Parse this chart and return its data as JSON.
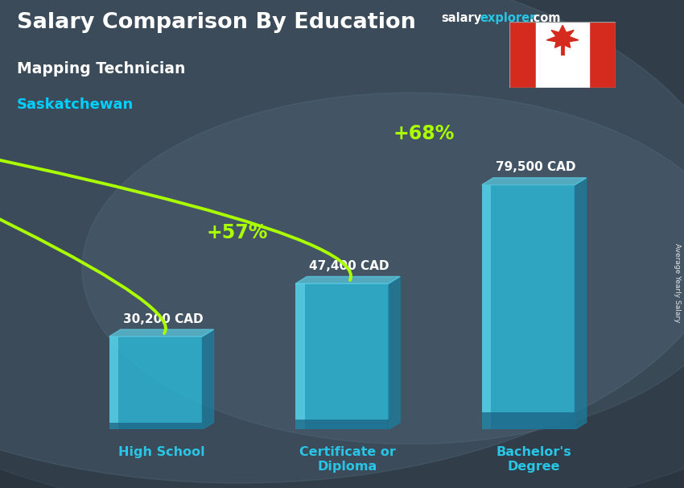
{
  "title_line1": "Salary Comparison By Education",
  "subtitle1": "Mapping Technician",
  "subtitle2": "Saskatchewan",
  "categories": [
    "High School",
    "Certificate or\nDiploma",
    "Bachelor's\nDegree"
  ],
  "values": [
    30200,
    47400,
    79500
  ],
  "value_labels": [
    "30,200 CAD",
    "47,400 CAD",
    "79,500 CAD"
  ],
  "pct_labels": [
    "+57%",
    "+68%"
  ],
  "bar_face_color": "#29c5e6",
  "bar_side_color": "#1a7fa0",
  "bar_top_color": "#5dd8f0",
  "bg_overlay_color": "#1c2b38",
  "title_color": "#ffffff",
  "subtitle1_color": "#ffffff",
  "subtitle2_color": "#00cfff",
  "value_label_color": "#ffffff",
  "pct_color": "#aaff00",
  "arrow_color": "#aaff00",
  "cat_label_color": "#29c5e6",
  "site_salary_color": "#ffffff",
  "site_explorer_color": "#29c5e6",
  "site_com_color": "#ffffff",
  "side_label": "Average Yearly Salary",
  "ymax": 92000,
  "bar_alpha": 0.72
}
